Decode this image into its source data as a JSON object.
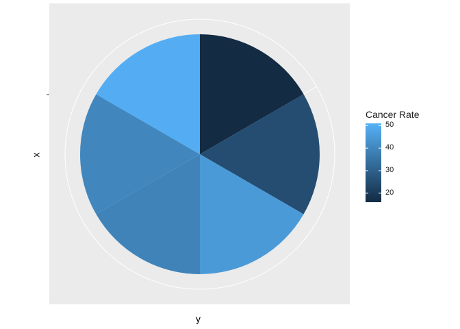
{
  "chart_data": {
    "type": "pie",
    "xlabel": "y",
    "ylabel": "x",
    "slices": [
      {
        "value": 1,
        "rate": 16
      },
      {
        "value": 1,
        "rate": 25
      },
      {
        "value": 1,
        "rate": 45
      },
      {
        "value": 1,
        "rate": 39
      },
      {
        "value": 1,
        "rate": 40
      },
      {
        "value": 1,
        "rate": 50
      }
    ],
    "legend": {
      "title": "Cancer Rate",
      "placement": "right",
      "ticks": [
        "50",
        "40",
        "30",
        "20"
      ],
      "tick_values": [
        50,
        40,
        30,
        20
      ],
      "range": [
        16,
        51
      ],
      "low_color": "#132B43",
      "high_color": "#56B1F7"
    },
    "panel_background": "#EBEBEB",
    "grid": true
  }
}
